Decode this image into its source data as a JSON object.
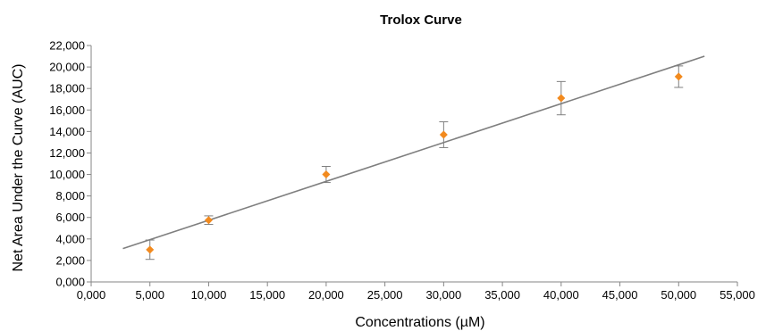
{
  "chart_data": {
    "type": "scatter",
    "title": "Trolox Curve",
    "xlabel": "Concentrations (µM)",
    "ylabel": "Net Area Under the Curve (AUC)",
    "xlim": [
      0,
      55000
    ],
    "ylim": [
      0,
      22000
    ],
    "x_ticks": [
      "0,000",
      "5,000",
      "10,000",
      "15,000",
      "20,000",
      "25,000",
      "30,000",
      "35,000",
      "40,000",
      "45,000",
      "50,000",
      "55,000"
    ],
    "y_ticks": [
      "0,000",
      "2,000",
      "4,000",
      "6,000",
      "8,000",
      "10,000",
      "12,000",
      "14,000",
      "16,000",
      "18,000",
      "20,000",
      "22,000"
    ],
    "grid": false,
    "legend": "none",
    "marker_color": "#F28A1E",
    "trendline_color": "#7F7F7F",
    "errorbar_color": "#7F7F7F",
    "series": [
      {
        "x": [
          5000,
          10000,
          20000,
          30000,
          40000,
          50000
        ],
        "y": [
          3000,
          5750,
          10000,
          13700,
          17100,
          19100
        ],
        "error": [
          900,
          400,
          750,
          1200,
          1550,
          1000
        ]
      }
    ],
    "trendline": {
      "x": [
        2700,
        52200
      ],
      "y": [
        3100,
        21000
      ]
    }
  }
}
